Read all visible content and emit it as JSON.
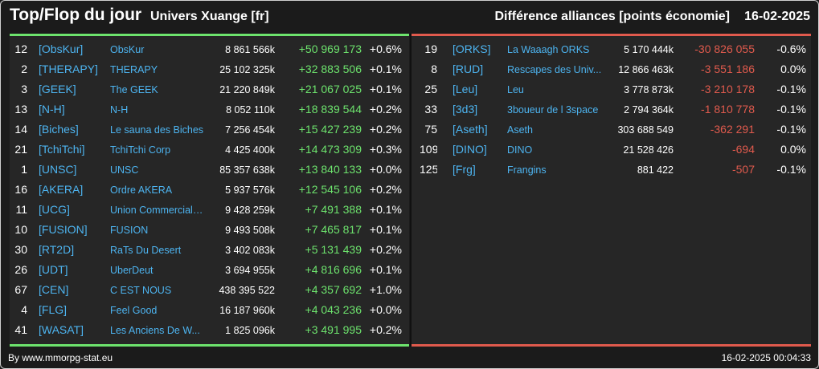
{
  "header": {
    "title": "Top/Flop du jour",
    "universe": "Univers Xuange [fr]",
    "subtitle": "Différence alliances [points économie]",
    "date": "16-02-2025"
  },
  "top": [
    {
      "rank": "12",
      "tag": "[ObsKur]",
      "name": "ObsKur",
      "points": "8 861 566k",
      "diff": "+50 969 173",
      "pct": "+0.6%"
    },
    {
      "rank": "2",
      "tag": "[THERAPY]",
      "name": "THERAPY",
      "points": "25 102 325k",
      "diff": "+32 883 506",
      "pct": "+0.1%"
    },
    {
      "rank": "3",
      "tag": "[GEEK]",
      "name": "The GEEK",
      "points": "21 220 849k",
      "diff": "+21 067 025",
      "pct": "+0.1%"
    },
    {
      "rank": "13",
      "tag": "[N-H]",
      "name": "N-H",
      "points": "8 052 110k",
      "diff": "+18 839 544",
      "pct": "+0.2%"
    },
    {
      "rank": "14",
      "tag": "[Biches]",
      "name": "Le sauna des Biches",
      "points": "7 256 454k",
      "diff": "+15 427 239",
      "pct": "+0.2%"
    },
    {
      "rank": "21",
      "tag": "[TchiTchi]",
      "name": "TchiTchi Corp",
      "points": "4 425 400k",
      "diff": "+14 473 309",
      "pct": "+0.3%"
    },
    {
      "rank": "1",
      "tag": "[UNSC]",
      "name": "UNSC",
      "points": "85 357 638k",
      "diff": "+13 840 133",
      "pct": "+0.0%"
    },
    {
      "rank": "16",
      "tag": "[AKERA]",
      "name": "Ordre AKERA",
      "points": "5 937 576k",
      "diff": "+12 545 106",
      "pct": "+0.2%"
    },
    {
      "rank": "11",
      "tag": "[UCG]",
      "name": "Union Commerciale...",
      "points": "9 428 259k",
      "diff": "+7 491 388",
      "pct": "+0.1%"
    },
    {
      "rank": "10",
      "tag": "[FUSION]",
      "name": "FUSION",
      "points": "9 493 508k",
      "diff": "+7 465 817",
      "pct": "+0.1%"
    },
    {
      "rank": "30",
      "tag": "[RT2D]",
      "name": "RaTs Du Desert",
      "points": "3 402 083k",
      "diff": "+5 131 439",
      "pct": "+0.2%"
    },
    {
      "rank": "26",
      "tag": "[UDT]",
      "name": "UberDeut",
      "points": "3 694 955k",
      "diff": "+4 816 696",
      "pct": "+0.1%"
    },
    {
      "rank": "67",
      "tag": "[CEN]",
      "name": "C EST NOUS",
      "points": "438 395 522",
      "diff": "+4 357 692",
      "pct": "+1.0%"
    },
    {
      "rank": "4",
      "tag": "[FLG]",
      "name": "Feel Good",
      "points": "16 187 960k",
      "diff": "+4 043 236",
      "pct": "+0.0%"
    },
    {
      "rank": "41",
      "tag": "[WASAT]",
      "name": "Les Anciens De W...",
      "points": "1 825 096k",
      "diff": "+3 491 995",
      "pct": "+0.2%"
    }
  ],
  "flop": [
    {
      "rank": "19",
      "tag": "[ORKS]",
      "name": "La Waaagh ORKS",
      "points": "5 170 444k",
      "diff": "-30 826 055",
      "pct": "-0.6%"
    },
    {
      "rank": "8",
      "tag": "[RUD]",
      "name": "Rescapes des Univ...",
      "points": "12 866 463k",
      "diff": "-3 551 186",
      "pct": "0.0%"
    },
    {
      "rank": "25",
      "tag": "[Leu]",
      "name": "Leu",
      "points": "3 778 873k",
      "diff": "-3 210 178",
      "pct": "-0.1%"
    },
    {
      "rank": "33",
      "tag": "[3d3]",
      "name": "3boueur de l 3space",
      "points": "2 794 364k",
      "diff": "-1 810 778",
      "pct": "-0.1%"
    },
    {
      "rank": "75",
      "tag": "[Aseth]",
      "name": "Aseth",
      "points": "303 688 549",
      "diff": "-362 291",
      "pct": "-0.1%"
    },
    {
      "rank": "109",
      "tag": "[DINO]",
      "name": "DINO",
      "points": "21 528 426",
      "diff": "-694",
      "pct": "0.0%"
    },
    {
      "rank": "125",
      "tag": "[Frg]",
      "name": "Frangins",
      "points": "881 422",
      "diff": "-507",
      "pct": "-0.1%"
    }
  ],
  "footer": {
    "source": "By www.mmorpg-stat.eu",
    "timestamp": "16-02-2025 00:04:33"
  },
  "colors": {
    "top_accent": "#6de36d",
    "flop_accent": "#e05a4d",
    "link": "#4db4f0"
  }
}
